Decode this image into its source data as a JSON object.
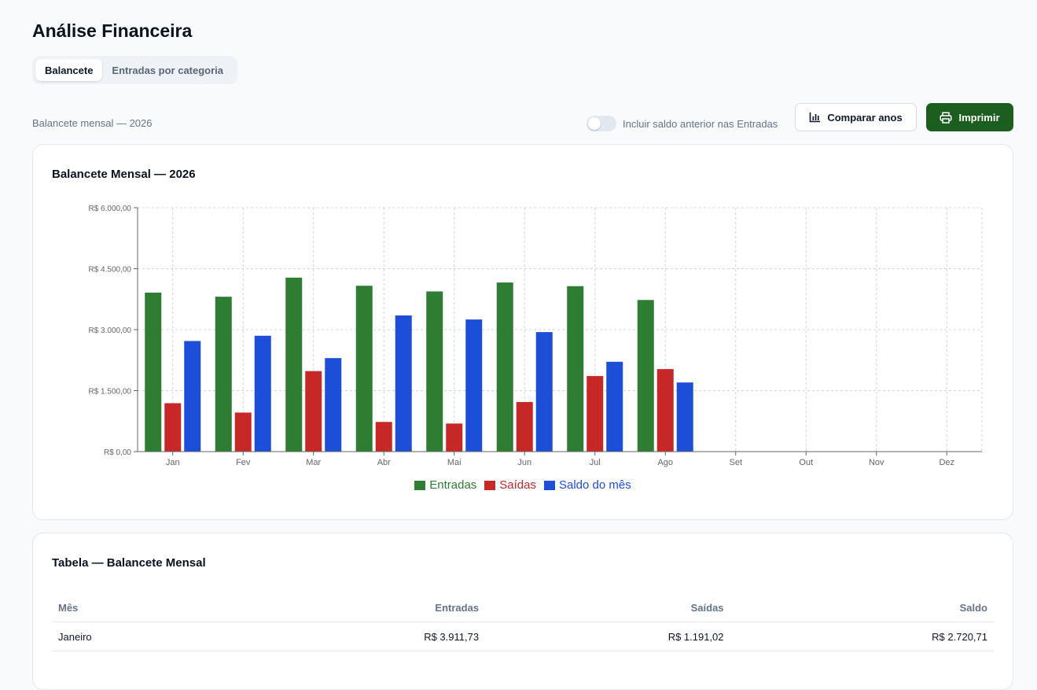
{
  "header": {
    "title": "Análise Financeira"
  },
  "tabs": [
    {
      "label": "Balancete",
      "active": true
    },
    {
      "label": "Entradas por categoria",
      "active": false
    }
  ],
  "toolbar": {
    "subtitle": "Balancete mensal — 2026",
    "toggle_label": "Incluir saldo anterior nas Entradas",
    "toggle_on": false,
    "compare_label": "Comparar anos",
    "compare_icon": "bar-chart-icon",
    "print_label": "Imprimir",
    "print_icon": "printer-icon",
    "accent_color": "#1b5e20"
  },
  "chart_card": {
    "title": "Balancete Mensal — 2026"
  },
  "chart_data": {
    "type": "bar",
    "categories": [
      "Jan",
      "Fev",
      "Mar",
      "Abr",
      "Mai",
      "Jun",
      "Jul",
      "Ago",
      "Set",
      "Out",
      "Nov",
      "Dez"
    ],
    "series": [
      {
        "name": "Entradas",
        "color": "#2e7d32",
        "values": [
          3911.73,
          3810,
          4280,
          4080,
          3940,
          4160,
          4070,
          3730,
          null,
          null,
          null,
          null
        ]
      },
      {
        "name": "Saídas",
        "color": "#c62828",
        "values": [
          1191.02,
          960,
          1980,
          730,
          690,
          1220,
          1860,
          2030,
          null,
          null,
          null,
          null
        ]
      },
      {
        "name": "Saldo do mês",
        "color": "#1d4ed8",
        "values": [
          2720.71,
          2850,
          2300,
          3350,
          3250,
          2940,
          2210,
          1700,
          null,
          null,
          null,
          null
        ]
      }
    ],
    "yticks": [
      "R$ 0,00",
      "R$ 1.500,00",
      "R$ 3.000,00",
      "R$ 4.500,00",
      "R$ 6.000,00"
    ],
    "ylim": [
      0,
      6000
    ],
    "grid": true,
    "legend_position": "bottom-center",
    "title": "",
    "xlabel": "",
    "ylabel": ""
  },
  "table_card": {
    "title": "Tabela — Balancete Mensal",
    "columns": {
      "month": "Mês",
      "in": "Entradas",
      "out": "Saídas",
      "balance": "Saldo"
    },
    "rows": [
      {
        "month": "Janeiro",
        "in": "R$ 3.911,73",
        "out": "R$ 1.191,02",
        "balance": "R$ 2.720,71"
      }
    ]
  }
}
